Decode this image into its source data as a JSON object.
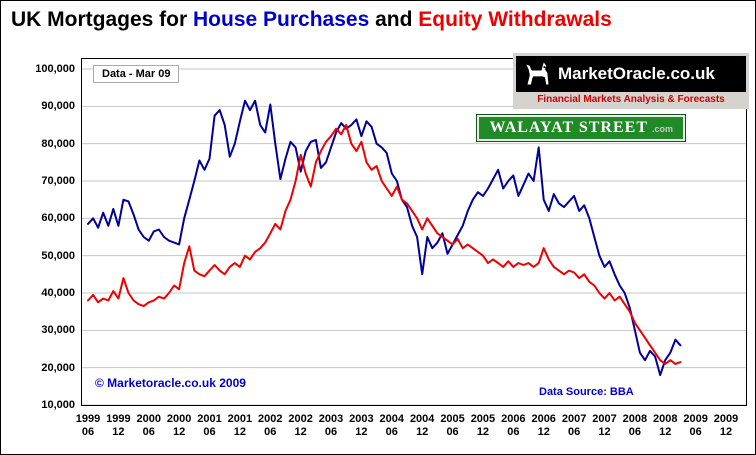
{
  "title": {
    "part1": "UK Mortgages for ",
    "part2": "House Purchases",
    "part3": " and ",
    "part4": "Equity Withdrawals"
  },
  "annotations": {
    "data_note": "Data - Mar 09",
    "copyright": "© Marketoracle.co.uk 2009",
    "data_source": "Data Source: BBA"
  },
  "logos": {
    "marketoracle": {
      "name": "MarketOracle.co.uk",
      "tagline": "Financial Markets Analysis & Forecasts",
      "icon": "goat-icon"
    },
    "walayat": {
      "name": "WALAYAT STREET",
      "suffix": ".com"
    }
  },
  "colors": {
    "house_purchases": "#000099",
    "equity_withdrawals": "#ee0000",
    "gridline": "#c6c6c6",
    "plot_border": "#000000",
    "annotation_blue": "#0000cc",
    "logo_panel_gray": "#d6d3ce",
    "walayat_green": "#1f8a26"
  },
  "chart_data": {
    "type": "line",
    "title": "UK Mortgages for House Purchases and Equity Withdrawals",
    "value_unit": "thousands",
    "ylim": [
      10000,
      100000
    ],
    "grid": "horizontal",
    "x_start": "1999-06",
    "x_axis_end": "2009-12",
    "months_per_point": 1,
    "y_ticks": [
      "100,000",
      "90,000",
      "80,000",
      "70,000",
      "60,000",
      "50,000",
      "40,000",
      "30,000",
      "20,000",
      "10,000"
    ],
    "x_ticks": [
      {
        "year": "1999",
        "month": "06"
      },
      {
        "year": "1999",
        "month": "12"
      },
      {
        "year": "2000",
        "month": "06"
      },
      {
        "year": "2000",
        "month": "12"
      },
      {
        "year": "2001",
        "month": "06"
      },
      {
        "year": "2001",
        "month": "12"
      },
      {
        "year": "2002",
        "month": "06"
      },
      {
        "year": "2002",
        "month": "12"
      },
      {
        "year": "2003",
        "month": "06"
      },
      {
        "year": "2003",
        "month": "12"
      },
      {
        "year": "2004",
        "month": "06"
      },
      {
        "year": "2004",
        "month": "12"
      },
      {
        "year": "2005",
        "month": "06"
      },
      {
        "year": "2005",
        "month": "12"
      },
      {
        "year": "2006",
        "month": "06"
      },
      {
        "year": "2006",
        "month": "12"
      },
      {
        "year": "2007",
        "month": "06"
      },
      {
        "year": "2007",
        "month": "12"
      },
      {
        "year": "2008",
        "month": "06"
      },
      {
        "year": "2008",
        "month": "12"
      },
      {
        "year": "2009",
        "month": "06"
      },
      {
        "year": "2009",
        "month": "12"
      }
    ],
    "series": [
      {
        "name": "House Purchases",
        "color": "#000099",
        "values": [
          58.5,
          60,
          57.5,
          61.5,
          58,
          62.5,
          58,
          65,
          64.5,
          61,
          57,
          55,
          54,
          56.5,
          57,
          55,
          54,
          53.5,
          53,
          60,
          65,
          70,
          75.5,
          73,
          76,
          87.5,
          89,
          85,
          76.5,
          80,
          86,
          91.5,
          89,
          91.5,
          85,
          83,
          90.5,
          80,
          70.5,
          76,
          80.5,
          79,
          72.5,
          78,
          80.5,
          81,
          73.5,
          75,
          79,
          83,
          85.5,
          84,
          85,
          86.5,
          82,
          86,
          84.5,
          80,
          79,
          77.5,
          72,
          70,
          65,
          63,
          58,
          55,
          45,
          55,
          52,
          53.5,
          56,
          50.5,
          53,
          55.5,
          58,
          62,
          65,
          67,
          66,
          68,
          70.5,
          73,
          68,
          70,
          71.5,
          66,
          69,
          72,
          70,
          79,
          65,
          62,
          66.5,
          64,
          63,
          64.5,
          66,
          62,
          63.5,
          60,
          55,
          50,
          47,
          48.5,
          45,
          42,
          40,
          36,
          30,
          24,
          22,
          24.5,
          23,
          18,
          22,
          24,
          27.5,
          26
        ]
      },
      {
        "name": "Equity Withdrawals",
        "color": "#ee0000",
        "values": [
          38,
          39.5,
          37.5,
          38.5,
          38,
          40.5,
          38.5,
          44,
          40,
          38,
          37,
          36.5,
          37.5,
          38,
          39,
          38.5,
          40,
          42,
          41,
          48,
          52.5,
          46,
          45,
          44.5,
          46,
          47.5,
          46,
          45,
          47,
          48,
          47,
          50,
          49,
          51,
          52,
          53.5,
          56,
          58.5,
          57,
          62,
          65,
          70,
          77,
          72,
          68.5,
          75,
          78,
          80.5,
          82,
          84,
          82.5,
          85,
          80,
          78,
          80.5,
          75,
          73,
          74,
          70,
          68,
          66,
          68.5,
          65,
          64,
          62,
          60,
          57,
          60,
          58,
          56,
          55,
          54,
          53,
          54.5,
          52,
          53,
          52,
          51,
          50,
          48,
          49,
          48,
          47,
          48.5,
          47,
          48,
          47.5,
          48,
          47,
          48,
          52,
          49,
          47,
          46,
          45,
          46,
          45.5,
          44,
          45,
          43,
          42,
          40,
          38.5,
          40,
          38,
          39,
          37,
          35,
          32,
          30,
          28,
          26,
          24,
          22,
          21,
          22,
          21,
          21.5
        ]
      }
    ]
  }
}
